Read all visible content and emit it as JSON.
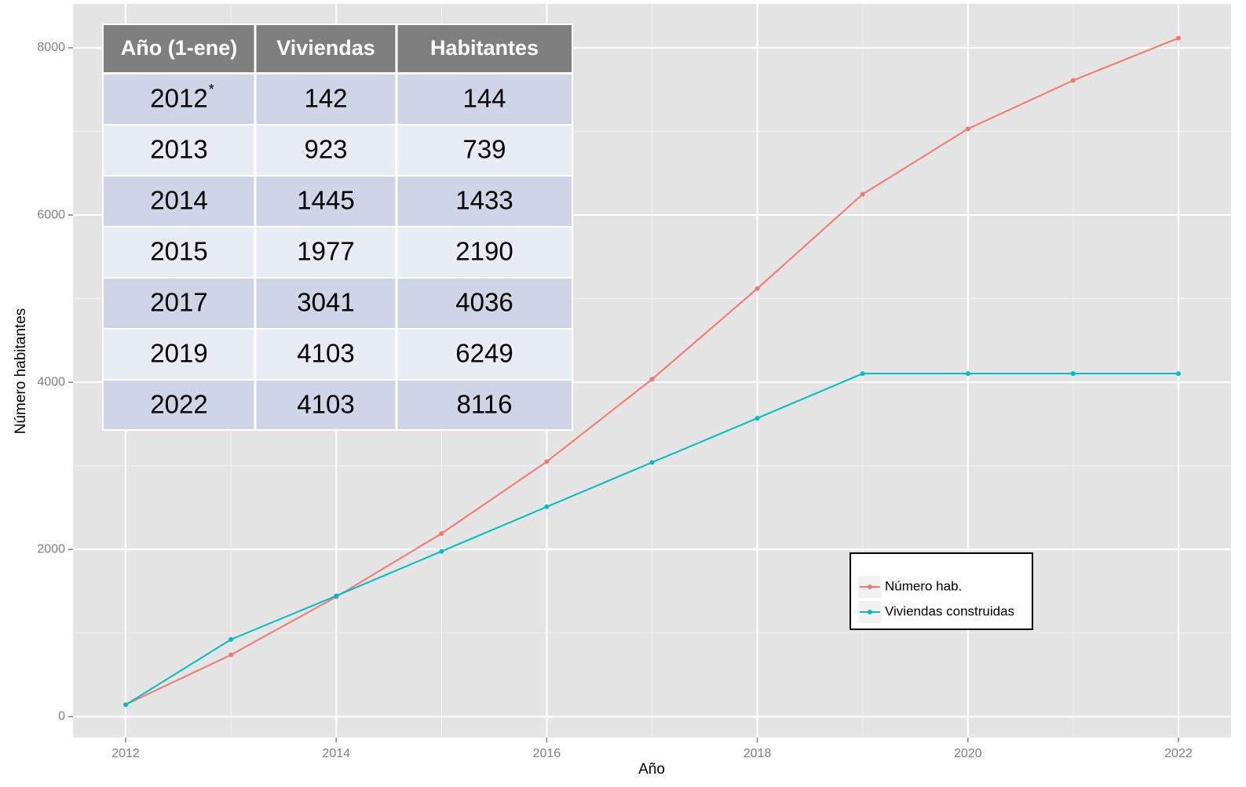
{
  "chart_data": {
    "type": "line",
    "x": [
      2012,
      2013,
      2014,
      2015,
      2016,
      2017,
      2018,
      2019,
      2020,
      2021,
      2022
    ],
    "series": [
      {
        "name": "Número hab.",
        "color": "#f8766d",
        "values": [
          144,
          739,
          1433,
          2190,
          3050,
          4036,
          5120,
          6249,
          7030,
          7610,
          8116
        ]
      },
      {
        "name": "Viviendas construidas",
        "color": "#00bfc4",
        "values": [
          142,
          923,
          1445,
          1977,
          2510,
          3041,
          3570,
          4103,
          4103,
          4103,
          4103
        ]
      }
    ],
    "xlabel": "Año",
    "ylabel": "Número habitantes",
    "xlim": [
      2011.5,
      2022.5
    ],
    "xticks": [
      2012,
      2014,
      2016,
      2018,
      2020,
      2022
    ],
    "ylim": [
      -250,
      8525
    ],
    "yticks": [
      0,
      2000,
      4000,
      6000,
      8000
    ],
    "grid": true
  },
  "table": {
    "headers": [
      "Año (1-ene)",
      "Viviendas",
      "Habitantes"
    ],
    "rows": [
      [
        "2012",
        "142",
        "144"
      ],
      [
        "2013",
        "923",
        "739"
      ],
      [
        "2014",
        "1445",
        "1433"
      ],
      [
        "2015",
        "1977",
        "2190"
      ],
      [
        "2017",
        "3041",
        "4036"
      ],
      [
        "2019",
        "4103",
        "6249"
      ],
      [
        "2022",
        "4103",
        "8116"
      ]
    ],
    "note_mark": "*"
  }
}
